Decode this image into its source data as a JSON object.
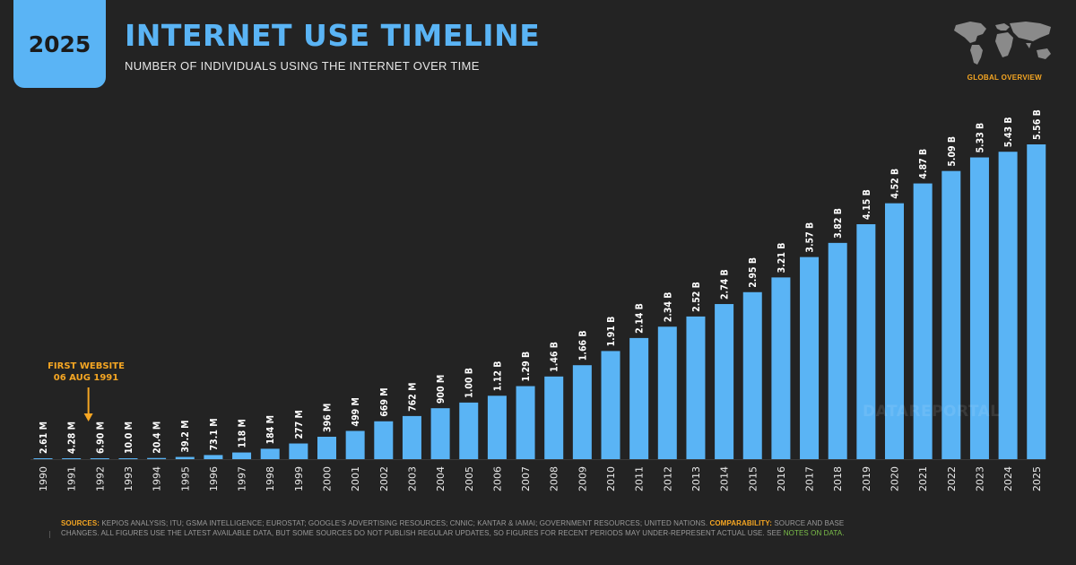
{
  "header": {
    "year": "2025",
    "title": "INTERNET USE TIMELINE",
    "subtitle": "NUMBER OF INDIVIDUALS USING THE INTERNET OVER TIME",
    "global_label": "GLOBAL OVERVIEW"
  },
  "annotation": {
    "line1": "FIRST WEBSITE",
    "line2": "06 AUG 1991"
  },
  "watermark": "DATAREPORTAL",
  "footer": {
    "sources_label": "SOURCES:",
    "sources_text": " KEPIOS ANALYSIS; ITU; GSMA INTELLIGENCE; EUROSTAT; GOOGLE'S ADVERTISING RESOURCES; CNNIC; KANTAR & IAMAI; GOVERNMENT RESOURCES; UNITED NATIONS. ",
    "comparability_label": "COMPARABILITY:",
    "comparability_text": " SOURCE AND BASE CHANGES. ALL FIGURES USE THE LATEST AVAILABLE DATA, BUT SOME SOURCES DO NOT PUBLISH REGULAR UPDATES, SO FIGURES FOR RECENT PERIODS MAY UNDER-REPRESENT ACTUAL USE. SEE ",
    "notes_link": "NOTES ON DATA."
  },
  "colors": {
    "bar": "#5ab4f5",
    "accent_orange": "#f5a623",
    "background": "#232323",
    "link_green": "#7cc04a"
  },
  "chart_data": {
    "type": "bar",
    "categories": [
      "1990",
      "1991",
      "1992",
      "1993",
      "1994",
      "1995",
      "1996",
      "1997",
      "1998",
      "1999",
      "2000",
      "2001",
      "2002",
      "2003",
      "2004",
      "2005",
      "2006",
      "2007",
      "2008",
      "2009",
      "2010",
      "2011",
      "2012",
      "2013",
      "2014",
      "2015",
      "2016",
      "2017",
      "2018",
      "2019",
      "2020",
      "2021",
      "2022",
      "2023",
      "2024",
      "2025"
    ],
    "values": [
      0.00261,
      0.00428,
      0.0069,
      0.01,
      0.0204,
      0.0392,
      0.0731,
      0.118,
      0.184,
      0.277,
      0.396,
      0.499,
      0.669,
      0.762,
      0.9,
      1.0,
      1.12,
      1.29,
      1.46,
      1.66,
      1.91,
      2.14,
      2.34,
      2.52,
      2.74,
      2.95,
      3.21,
      3.57,
      3.82,
      4.15,
      4.52,
      4.87,
      5.09,
      5.33,
      5.43,
      5.56
    ],
    "value_units": "billions",
    "labels": [
      "2.61 M",
      "4.28 M",
      "6.90 M",
      "10.0 M",
      "20.4 M",
      "39.2 M",
      "73.1 M",
      "118 M",
      "184 M",
      "277 M",
      "396 M",
      "499 M",
      "669 M",
      "762 M",
      "900 M",
      "1.00 B",
      "1.12 B",
      "1.29 B",
      "1.46 B",
      "1.66 B",
      "1.91 B",
      "2.14 B",
      "2.34 B",
      "2.52 B",
      "2.74 B",
      "2.95 B",
      "3.21 B",
      "3.57 B",
      "3.82 B",
      "4.15 B",
      "4.52 B",
      "4.87 B",
      "5.09 B",
      "5.33 B",
      "5.43 B",
      "5.56 B"
    ],
    "title": "INTERNET USE TIMELINE",
    "subtitle": "NUMBER OF INDIVIDUALS USING THE INTERNET OVER TIME",
    "xlabel": "",
    "ylabel": "",
    "ylim": [
      0,
      5.56
    ],
    "grid": false,
    "legend": "none"
  }
}
